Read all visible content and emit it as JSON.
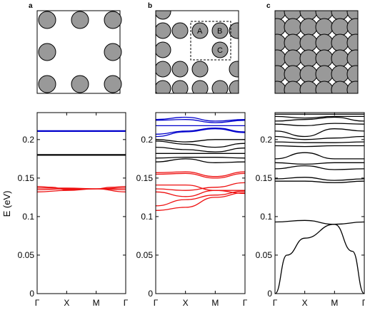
{
  "panel_labels": [
    "a",
    "b",
    "c"
  ],
  "site_labels": [
    "A",
    "B",
    "C"
  ],
  "colors": {
    "blue": "#0000cc",
    "black": "#000000",
    "red": "#ee1111",
    "disk": "#999999"
  },
  "chart_data": {
    "type": "line",
    "ylabel": "E (eV)",
    "xticks": [
      "Γ",
      "X",
      "M",
      "Γ"
    ],
    "yticks": [
      "0",
      "0.05",
      "0.1",
      "0.15",
      "0.2"
    ],
    "ylim": [
      0,
      0.235
    ],
    "panels": [
      {
        "name": "a",
        "bands": [
          {
            "color": "blue",
            "points": [
              [
                0,
                0.211
              ],
              [
                1,
                0.211
              ],
              [
                2,
                0.211
              ],
              [
                3,
                0.211
              ]
            ],
            "width": 2.2
          },
          {
            "color": "black",
            "points": [
              [
                0,
                0.18
              ],
              [
                1,
                0.18
              ],
              [
                2,
                0.18
              ],
              [
                3,
                0.18
              ]
            ],
            "width": 2.2
          },
          {
            "color": "red",
            "points": [
              [
                0,
                0.137
              ],
              [
                1,
                0.137
              ],
              [
                2,
                0.136
              ],
              [
                3,
                0.137
              ]
            ]
          },
          {
            "color": "red",
            "points": [
              [
                0,
                0.135
              ],
              [
                1,
                0.136
              ],
              [
                2,
                0.136
              ],
              [
                3,
                0.135
              ]
            ]
          },
          {
            "color": "red",
            "points": [
              [
                0,
                0.132
              ],
              [
                1,
                0.134
              ],
              [
                2,
                0.136
              ],
              [
                3,
                0.132
              ]
            ]
          },
          {
            "color": "red",
            "points": [
              [
                0,
                0.139
              ],
              [
                0.5,
                0.138
              ],
              [
                1,
                0.135
              ],
              [
                2,
                0.136
              ],
              [
                2.5,
                0.138
              ],
              [
                3,
                0.139
              ]
            ]
          }
        ]
      },
      {
        "name": "b",
        "bands": [
          {
            "color": "blue",
            "points": [
              [
                0,
                0.226
              ],
              [
                1,
                0.229
              ],
              [
                2,
                0.224
              ],
              [
                3,
                0.226
              ]
            ]
          },
          {
            "color": "blue",
            "points": [
              [
                0,
                0.225
              ],
              [
                1,
                0.226
              ],
              [
                2,
                0.222
              ],
              [
                3,
                0.225
              ]
            ]
          },
          {
            "color": "blue",
            "points": [
              [
                0,
                0.218
              ],
              [
                1,
                0.218
              ],
              [
                2,
                0.218
              ],
              [
                3,
                0.218
              ]
            ]
          },
          {
            "color": "blue",
            "points": [
              [
                0,
                0.204
              ],
              [
                1,
                0.21
              ],
              [
                2,
                0.214
              ],
              [
                3,
                0.209
              ]
            ]
          },
          {
            "color": "blue",
            "points": [
              [
                0,
                0.207
              ],
              [
                1,
                0.211
              ],
              [
                2,
                0.215
              ],
              [
                3,
                0.21
              ]
            ]
          },
          {
            "color": "black",
            "points": [
              [
                0,
                0.2
              ],
              [
                1,
                0.197
              ],
              [
                2,
                0.2
              ],
              [
                3,
                0.2
              ]
            ]
          },
          {
            "color": "black",
            "points": [
              [
                0,
                0.198
              ],
              [
                1,
                0.194
              ],
              [
                2,
                0.19
              ],
              [
                3,
                0.195
              ]
            ]
          },
          {
            "color": "black",
            "points": [
              [
                0,
                0.19
              ],
              [
                1,
                0.187
              ],
              [
                2,
                0.184
              ],
              [
                3,
                0.189
              ]
            ]
          },
          {
            "color": "black",
            "points": [
              [
                0,
                0.182
              ],
              [
                1,
                0.182
              ],
              [
                2,
                0.182
              ],
              [
                3,
                0.182
              ]
            ]
          },
          {
            "color": "black",
            "points": [
              [
                0,
                0.176
              ],
              [
                1,
                0.177
              ],
              [
                2,
                0.177
              ],
              [
                3,
                0.176
              ]
            ]
          },
          {
            "color": "black",
            "points": [
              [
                0,
                0.171
              ],
              [
                1,
                0.175
              ],
              [
                2,
                0.17
              ],
              [
                3,
                0.171
              ]
            ]
          },
          {
            "color": "red",
            "points": [
              [
                0,
                0.157
              ],
              [
                1,
                0.158
              ],
              [
                2,
                0.152
              ],
              [
                3,
                0.158
              ]
            ]
          },
          {
            "color": "red",
            "points": [
              [
                0,
                0.155
              ],
              [
                1,
                0.156
              ],
              [
                2,
                0.15
              ],
              [
                3,
                0.156
              ]
            ]
          },
          {
            "color": "red",
            "points": [
              [
                0,
                0.141
              ],
              [
                1,
                0.141
              ],
              [
                2,
                0.134
              ],
              [
                3,
                0.134
              ]
            ]
          },
          {
            "color": "red",
            "points": [
              [
                0,
                0.136
              ],
              [
                1,
                0.134
              ],
              [
                2,
                0.138
              ],
              [
                3,
                0.144
              ]
            ]
          },
          {
            "color": "red",
            "points": [
              [
                0,
                0.132
              ],
              [
                1,
                0.126
              ],
              [
                2,
                0.134
              ],
              [
                3,
                0.13
              ]
            ]
          },
          {
            "color": "red",
            "points": [
              [
                0,
                0.114
              ],
              [
                1,
                0.122
              ],
              [
                2,
                0.128
              ],
              [
                3,
                0.133
              ]
            ]
          },
          {
            "color": "red",
            "points": [
              [
                0,
                0.108
              ],
              [
                1,
                0.112
              ],
              [
                2,
                0.125
              ],
              [
                3,
                0.131
              ]
            ]
          }
        ]
      },
      {
        "name": "c",
        "bands": [
          {
            "color": "black",
            "points": [
              [
                0,
                0.233
              ],
              [
                1,
                0.233
              ],
              [
                2,
                0.233
              ],
              [
                3,
                0.233
              ]
            ]
          },
          {
            "color": "black",
            "points": [
              [
                0,
                0.23
              ],
              [
                1,
                0.228
              ],
              [
                2,
                0.23
              ],
              [
                3,
                0.23
              ]
            ]
          },
          {
            "color": "black",
            "points": [
              [
                0,
                0.224
              ],
              [
                1,
                0.226
              ],
              [
                2,
                0.229
              ],
              [
                3,
                0.224
              ]
            ]
          },
          {
            "color": "black",
            "points": [
              [
                0,
                0.22
              ],
              [
                1,
                0.218
              ],
              [
                2,
                0.221
              ],
              [
                3,
                0.22
              ]
            ]
          },
          {
            "color": "black",
            "points": [
              [
                0,
                0.211
              ],
              [
                1,
                0.204
              ],
              [
                2,
                0.214
              ],
              [
                3,
                0.211
              ]
            ]
          },
          {
            "color": "black",
            "points": [
              [
                0,
                0.204
              ],
              [
                1,
                0.2
              ],
              [
                2,
                0.202
              ],
              [
                3,
                0.204
              ]
            ]
          },
          {
            "color": "black",
            "points": [
              [
                0,
                0.197
              ],
              [
                1,
                0.196
              ],
              [
                2,
                0.196
              ],
              [
                3,
                0.197
              ]
            ]
          },
          {
            "color": "black",
            "points": [
              [
                0,
                0.192
              ],
              [
                1,
                0.191
              ],
              [
                2,
                0.192
              ],
              [
                3,
                0.192
              ]
            ]
          },
          {
            "color": "black",
            "points": [
              [
                0,
                0.175
              ],
              [
                1,
                0.183
              ],
              [
                2,
                0.175
              ],
              [
                3,
                0.175
              ]
            ]
          },
          {
            "color": "black",
            "points": [
              [
                0,
                0.17
              ],
              [
                1,
                0.168
              ],
              [
                2,
                0.17
              ],
              [
                3,
                0.17
              ]
            ]
          },
          {
            "color": "black",
            "points": [
              [
                0,
                0.162
              ],
              [
                1,
                0.166
              ],
              [
                2,
                0.161
              ],
              [
                3,
                0.162
              ]
            ]
          },
          {
            "color": "black",
            "points": [
              [
                0,
                0.149
              ],
              [
                1,
                0.151
              ],
              [
                2,
                0.147
              ],
              [
                3,
                0.149
              ]
            ]
          },
          {
            "color": "black",
            "points": [
              [
                0,
                0.146
              ],
              [
                1,
                0.146
              ],
              [
                2,
                0.144
              ],
              [
                3,
                0.146
              ]
            ]
          },
          {
            "color": "black",
            "points": [
              [
                0,
                0.093
              ],
              [
                1,
                0.095
              ],
              [
                2,
                0.09
              ],
              [
                3,
                0.093
              ]
            ]
          },
          {
            "color": "black",
            "points": [
              [
                0,
                0.0
              ],
              [
                0.4,
                0.05
              ],
              [
                1,
                0.072
              ],
              [
                2,
                0.09
              ],
              [
                2.6,
                0.055
              ],
              [
                3,
                0.0
              ]
            ]
          }
        ]
      }
    ]
  }
}
